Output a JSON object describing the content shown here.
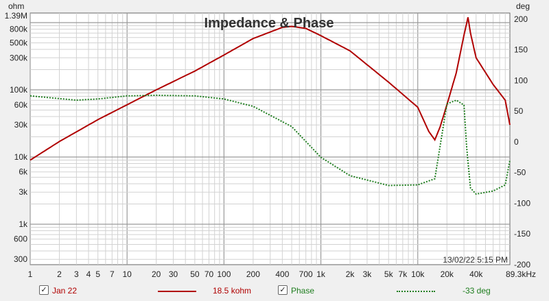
{
  "chart_data": {
    "type": "line",
    "title": "Impedance & Phase",
    "left_unit": "ohm",
    "right_unit": "deg",
    "x_unit_suffix": "Hz",
    "x_scale": "log",
    "y_left_scale": "log",
    "grid": true,
    "xlim": [
      1,
      89300
    ],
    "ylim_left": [
      250,
      1390000
    ],
    "ylim_right": [
      -200,
      210
    ],
    "x_ticks": [
      {
        "v": 1,
        "label": "1"
      },
      {
        "v": 2,
        "label": "2"
      },
      {
        "v": 3,
        "label": "3"
      },
      {
        "v": 4,
        "label": "4"
      },
      {
        "v": 5,
        "label": "5"
      },
      {
        "v": 7,
        "label": "7"
      },
      {
        "v": 10,
        "label": "10"
      },
      {
        "v": 20,
        "label": "20"
      },
      {
        "v": 30,
        "label": "30"
      },
      {
        "v": 50,
        "label": "50"
      },
      {
        "v": 70,
        "label": "70"
      },
      {
        "v": 100,
        "label": "100"
      },
      {
        "v": 200,
        "label": "200"
      },
      {
        "v": 400,
        "label": "400"
      },
      {
        "v": 700,
        "label": "700"
      },
      {
        "v": 1000,
        "label": "1k"
      },
      {
        "v": 2000,
        "label": "2k"
      },
      {
        "v": 3000,
        "label": "3k"
      },
      {
        "v": 5000,
        "label": "5k"
      },
      {
        "v": 7000,
        "label": "7k"
      },
      {
        "v": 10000,
        "label": "10k"
      },
      {
        "v": 20000,
        "label": "20k"
      },
      {
        "v": 40000,
        "label": "40k"
      },
      {
        "v": 89300,
        "label": "89.3kHz"
      }
    ],
    "y_left_ticks": [
      {
        "v": 1390000,
        "label": "1.39M"
      },
      {
        "v": 800000,
        "label": "800k"
      },
      {
        "v": 500000,
        "label": "500k"
      },
      {
        "v": 300000,
        "label": "300k"
      },
      {
        "v": 100000,
        "label": "100k"
      },
      {
        "v": 60000,
        "label": "60k"
      },
      {
        "v": 30000,
        "label": "30k"
      },
      {
        "v": 10000,
        "label": "10k"
      },
      {
        "v": 6000,
        "label": "6k"
      },
      {
        "v": 3000,
        "label": "3k"
      },
      {
        "v": 1000,
        "label": "1k"
      },
      {
        "v": 600,
        "label": "600"
      },
      {
        "v": 300,
        "label": "300"
      }
    ],
    "y_right_ticks": [
      200,
      150,
      100,
      50,
      0,
      -50,
      -100,
      -150,
      -200
    ],
    "series": [
      {
        "name": "Jan 22",
        "axis": "left",
        "color": "#b00000",
        "x": [
          1,
          2,
          5,
          10,
          20,
          50,
          100,
          200,
          400,
          500,
          700,
          1000,
          2000,
          5000,
          10000,
          13000,
          15000,
          17000,
          20000,
          25000,
          30000,
          33000,
          35000,
          40000,
          60000,
          80000,
          89300
        ],
        "y": [
          9000,
          17000,
          36000,
          60000,
          100000,
          190000,
          330000,
          580000,
          850000,
          880000,
          820000,
          640000,
          380000,
          130000,
          55000,
          24000,
          18000,
          28000,
          60000,
          180000,
          650000,
          1200000,
          700000,
          300000,
          120000,
          70000,
          30000
        ]
      },
      {
        "name": "Phase",
        "axis": "right",
        "color": "#1e7d1e",
        "x": [
          1,
          3,
          5,
          10,
          20,
          50,
          100,
          200,
          500,
          1000,
          2000,
          5000,
          10000,
          15000,
          20000,
          25000,
          30000,
          32000,
          35000,
          40000,
          60000,
          80000,
          89300
        ],
        "y": [
          75,
          68,
          70,
          75,
          76,
          75,
          70,
          58,
          25,
          -25,
          -55,
          -71,
          -70,
          -60,
          62,
          68,
          60,
          -10,
          -75,
          -85,
          -80,
          -70,
          -30
        ]
      }
    ],
    "timestamp": "13/02/22 5:15 PM",
    "legend": {
      "placement": "bottom",
      "entries": [
        {
          "label": "Jan 22",
          "value": "18.5 kohm",
          "checked": true
        },
        {
          "label": "Phase",
          "value": "-33 deg",
          "checked": true
        }
      ]
    }
  }
}
